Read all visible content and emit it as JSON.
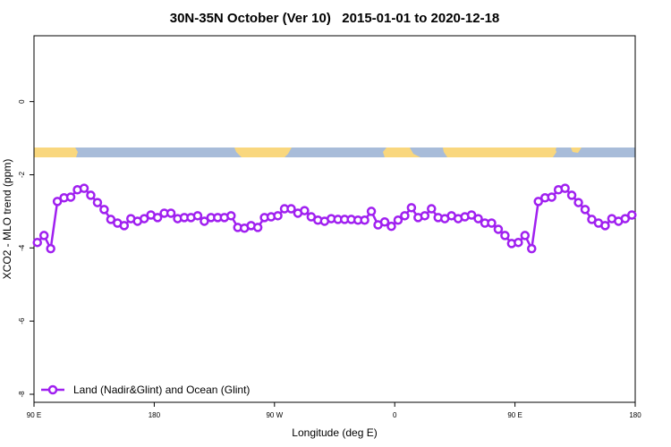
{
  "chart_data": {
    "type": "line",
    "title": "30N-35N October (Ver 10)   2015-01-01 to 2020-12-18",
    "xlabel": "Longitude (deg E)",
    "ylabel": "XCO2 - MLO trend (ppm)",
    "xlim": [
      90,
      540
    ],
    "xticks": [
      {
        "value": 90,
        "label": "90 E"
      },
      180,
      {
        "value": 270,
        "label": "90 W"
      },
      {
        "value": 360,
        "label": "0"
      },
      {
        "value": 450,
        "label": "90 E"
      },
      {
        "value": 540,
        "label": "180"
      }
    ],
    "ylim": [
      -8.22,
      1.8
    ],
    "yticks": [
      0,
      -2,
      -4,
      -6,
      -8
    ],
    "legend": "bottom-left",
    "x": [
      92.5,
      97.5,
      102.5,
      107.5,
      112.5,
      117.5,
      122.5,
      127.5,
      132.5,
      137.5,
      142.5,
      147.5,
      152.5,
      157.5,
      162.5,
      167.5,
      172.5,
      177.5,
      182.5,
      187.5,
      192.5,
      197.5,
      202.5,
      207.5,
      212.5,
      217.5,
      222.5,
      227.5,
      232.5,
      237.5,
      242.5,
      247.5,
      252.5,
      257.5,
      262.5,
      267.5,
      272.5,
      277.5,
      282.5,
      287.5,
      292.5,
      297.5,
      302.5,
      307.5,
      312.5,
      317.5,
      322.5,
      327.5,
      332.5,
      337.5,
      342.5,
      347.5,
      352.5,
      357.5,
      362.5,
      367.5,
      372.5,
      377.5,
      382.5,
      387.5,
      392.5,
      397.5,
      402.5,
      407.5,
      412.5,
      417.5,
      422.5,
      427.5,
      432.5,
      437.5,
      442.5,
      447.5,
      452.5,
      457.5,
      462.5,
      467.5,
      472.5,
      477.5,
      482.5,
      487.5,
      492.5,
      497.5,
      502.5,
      507.5,
      512.5,
      517.5,
      522.5,
      527.5,
      532.5,
      537.5
    ],
    "series": [
      {
        "name": "Land (Nadir&Glint) and Ocean (Glint)",
        "color": "#a020f0",
        "values": [
          -3.85,
          -3.66,
          -4.02,
          -2.73,
          -2.63,
          -2.61,
          -2.41,
          -2.37,
          -2.56,
          -2.76,
          -2.95,
          -3.22,
          -3.32,
          -3.39,
          -3.2,
          -3.27,
          -3.2,
          -3.1,
          -3.17,
          -3.05,
          -3.05,
          -3.2,
          -3.17,
          -3.17,
          -3.12,
          -3.27,
          -3.17,
          -3.17,
          -3.17,
          -3.12,
          -3.44,
          -3.46,
          -3.39,
          -3.44,
          -3.17,
          -3.15,
          -3.12,
          -2.93,
          -2.93,
          -3.05,
          -2.98,
          -3.15,
          -3.24,
          -3.27,
          -3.2,
          -3.22,
          -3.22,
          -3.22,
          -3.24,
          -3.24,
          -3.0,
          -3.37,
          -3.29,
          -3.41,
          -3.24,
          -3.12,
          -2.9,
          -3.17,
          -3.12,
          -2.93,
          -3.17,
          -3.2,
          -3.12,
          -3.2,
          -3.15,
          -3.1,
          -3.2,
          -3.32,
          -3.32,
          -3.49,
          -3.66,
          -3.88,
          -3.85,
          -3.66,
          -4.02,
          -2.73,
          -2.63,
          -2.61,
          -2.41,
          -2.37,
          -2.56,
          -2.76,
          -2.95,
          -3.22,
          -3.32,
          -3.39,
          -3.2,
          -3.27,
          -3.2,
          -3.1
        ]
      }
    ]
  }
}
